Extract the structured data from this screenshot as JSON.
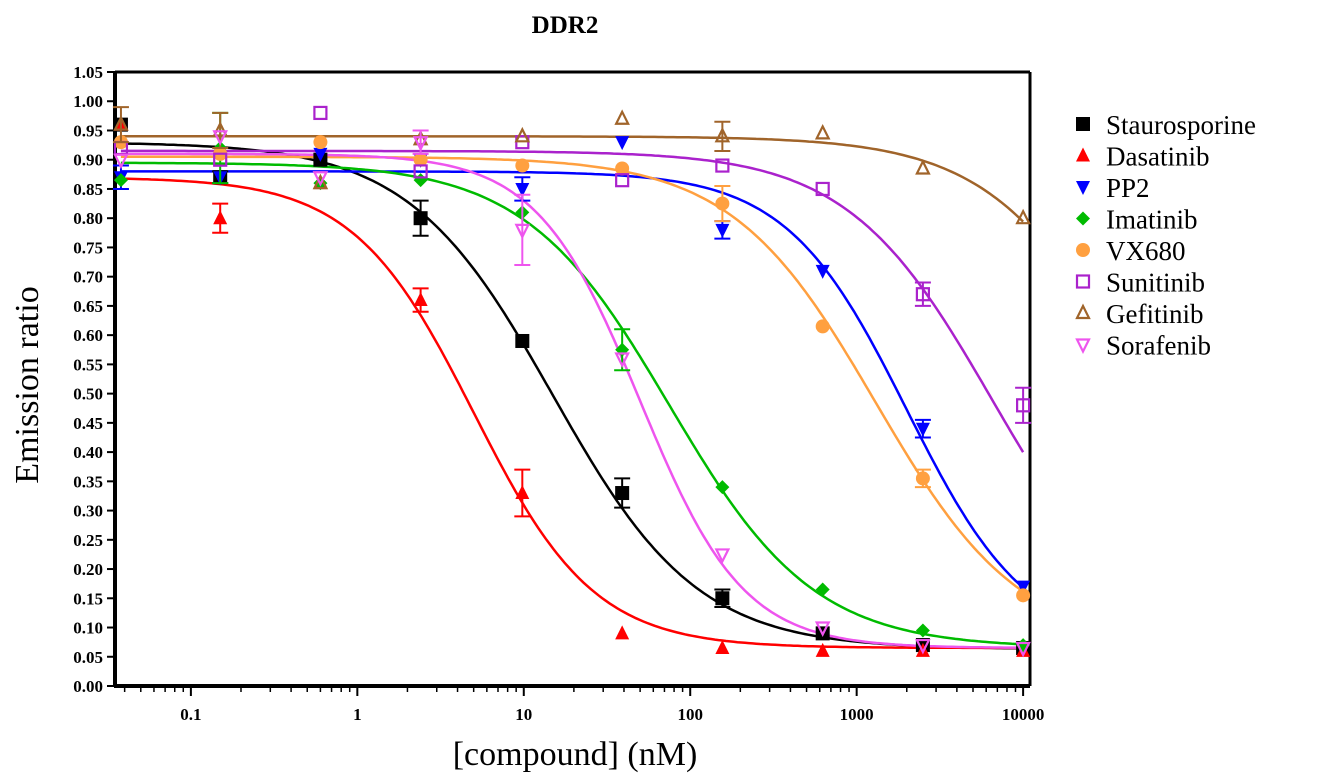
{
  "chart_data": {
    "type": "scatter",
    "title": "DDR2",
    "xlabel": "[compound] (nM)",
    "ylabel": "Emission ratio",
    "x_scale": "log",
    "xlim": [
      0.035,
      11000
    ],
    "ylim": [
      0.0,
      1.05
    ],
    "x_ticks": [
      {
        "value": 0.1,
        "label": "0.1"
      },
      {
        "value": 1,
        "label": "1"
      },
      {
        "value": 10,
        "label": "10"
      },
      {
        "value": 100,
        "label": "100"
      },
      {
        "value": 1000,
        "label": "1000"
      },
      {
        "value": 10000,
        "label": "10000"
      }
    ],
    "y_ticks": [
      {
        "value": 0.0,
        "label": "0.00"
      },
      {
        "value": 0.05,
        "label": "0.05"
      },
      {
        "value": 0.1,
        "label": "0.10"
      },
      {
        "value": 0.15,
        "label": "0.15"
      },
      {
        "value": 0.2,
        "label": "0.20"
      },
      {
        "value": 0.25,
        "label": "0.25"
      },
      {
        "value": 0.3,
        "label": "0.30"
      },
      {
        "value": 0.35,
        "label": "0.35"
      },
      {
        "value": 0.4,
        "label": "0.40"
      },
      {
        "value": 0.45,
        "label": "0.45"
      },
      {
        "value": 0.5,
        "label": "0.50"
      },
      {
        "value": 0.55,
        "label": "0.55"
      },
      {
        "value": 0.6,
        "label": "0.60"
      },
      {
        "value": 0.65,
        "label": "0.65"
      },
      {
        "value": 0.7,
        "label": "0.70"
      },
      {
        "value": 0.75,
        "label": "0.75"
      },
      {
        "value": 0.8,
        "label": "0.80"
      },
      {
        "value": 0.85,
        "label": "0.85"
      },
      {
        "value": 0.9,
        "label": "0.90"
      },
      {
        "value": 0.95,
        "label": "0.95"
      },
      {
        "value": 1.0,
        "label": "1.00"
      },
      {
        "value": 1.05,
        "label": "1.05"
      }
    ],
    "grid": false,
    "legend_position": "right",
    "x": [
      0.038,
      0.15,
      0.6,
      2.4,
      9.8,
      39,
      156,
      625,
      2500,
      10000
    ],
    "series": [
      {
        "name": "Staurosporine",
        "color": "#000000",
        "marker": "square-filled",
        "values": [
          0.96,
          0.87,
          0.9,
          0.8,
          0.59,
          0.33,
          0.15,
          0.09,
          0.07,
          0.065
        ],
        "errors": [
          0,
          0.01,
          0,
          0.03,
          0,
          0.025,
          0.015,
          0,
          0,
          0
        ],
        "fit": {
          "top": 0.93,
          "bottom": 0.063,
          "ec50": 15,
          "hill": 1.0
        }
      },
      {
        "name": "Dasatinib",
        "color": "#ff0000",
        "marker": "triangle-up-filled",
        "values": [
          0.96,
          0.8,
          0.86,
          0.66,
          0.33,
          0.09,
          0.065,
          0.06,
          0.06,
          0.06
        ],
        "errors": [
          0,
          0.025,
          0,
          0.02,
          0.04,
          0,
          0,
          0,
          0,
          0
        ],
        "fit": {
          "top": 0.87,
          "bottom": 0.065,
          "ec50": 5,
          "hill": 1.2
        }
      },
      {
        "name": "PP2",
        "color": "#0000ff",
        "marker": "triangle-down-filled",
        "values": [
          0.87,
          0.87,
          0.91,
          0.9,
          0.85,
          0.93,
          0.78,
          0.71,
          0.44,
          0.17
        ],
        "errors": [
          0.02,
          0,
          0,
          0,
          0.02,
          0,
          0.015,
          0,
          0.015,
          0
        ],
        "fit": {
          "top": 0.88,
          "bottom": 0.065,
          "ec50": 2000,
          "hill": 1.2
        }
      },
      {
        "name": "Imatinib",
        "color": "#00bb00",
        "marker": "diamond-filled",
        "values": [
          0.865,
          0.92,
          0.86,
          0.865,
          0.81,
          0.575,
          0.34,
          0.165,
          0.095,
          0.07
        ],
        "errors": [
          0,
          0.06,
          0,
          0,
          0,
          0.035,
          0,
          0,
          0,
          0
        ],
        "fit": {
          "top": 0.895,
          "bottom": 0.065,
          "ec50": 75,
          "hill": 1.0
        }
      },
      {
        "name": "VX680",
        "color": "#ffa040",
        "marker": "circle-filled",
        "values": [
          0.93,
          0.91,
          0.93,
          0.9,
          0.89,
          0.885,
          0.825,
          0.615,
          0.355,
          0.155
        ],
        "errors": [
          0,
          0,
          0,
          0,
          0,
          0,
          0.03,
          0,
          0.015,
          0
        ],
        "fit": {
          "top": 0.905,
          "bottom": 0.065,
          "ec50": 1300,
          "hill": 1.0
        }
      },
      {
        "name": "Sunitinib",
        "color": "#aa22cc",
        "marker": "square-open",
        "values": [
          0.92,
          0.9,
          0.98,
          0.88,
          0.93,
          0.865,
          0.89,
          0.85,
          0.67,
          0.48
        ],
        "errors": [
          0,
          0,
          0,
          0,
          0,
          0,
          0,
          0,
          0.02,
          0.03
        ],
        "fit": {
          "top": 0.915,
          "bottom": 0.065,
          "ec50": 6500,
          "hill": 1.0
        }
      },
      {
        "name": "Gefitinib",
        "color": "#a0642a",
        "marker": "triangle-up-open",
        "values": [
          0.96,
          0.95,
          0.86,
          0.935,
          0.94,
          0.97,
          0.94,
          0.945,
          0.885,
          0.8
        ],
        "errors": [
          0.03,
          0.03,
          0,
          0,
          0,
          0,
          0.025,
          0,
          0,
          0
        ],
        "fit": {
          "top": 0.94,
          "bottom": 0.065,
          "ec50": 50000,
          "hill": 1.0
        }
      },
      {
        "name": "Sorafenib",
        "color": "#ee55ee",
        "marker": "triangle-down-open",
        "values": [
          0.9,
          0.94,
          0.87,
          0.93,
          0.78,
          0.56,
          0.225,
          0.1,
          0.07,
          0.065
        ],
        "errors": [
          0,
          0,
          0,
          0.02,
          0.06,
          0,
          0,
          0,
          0,
          0
        ],
        "fit": {
          "top": 0.91,
          "bottom": 0.065,
          "ec50": 50,
          "hill": 1.4
        }
      }
    ]
  }
}
